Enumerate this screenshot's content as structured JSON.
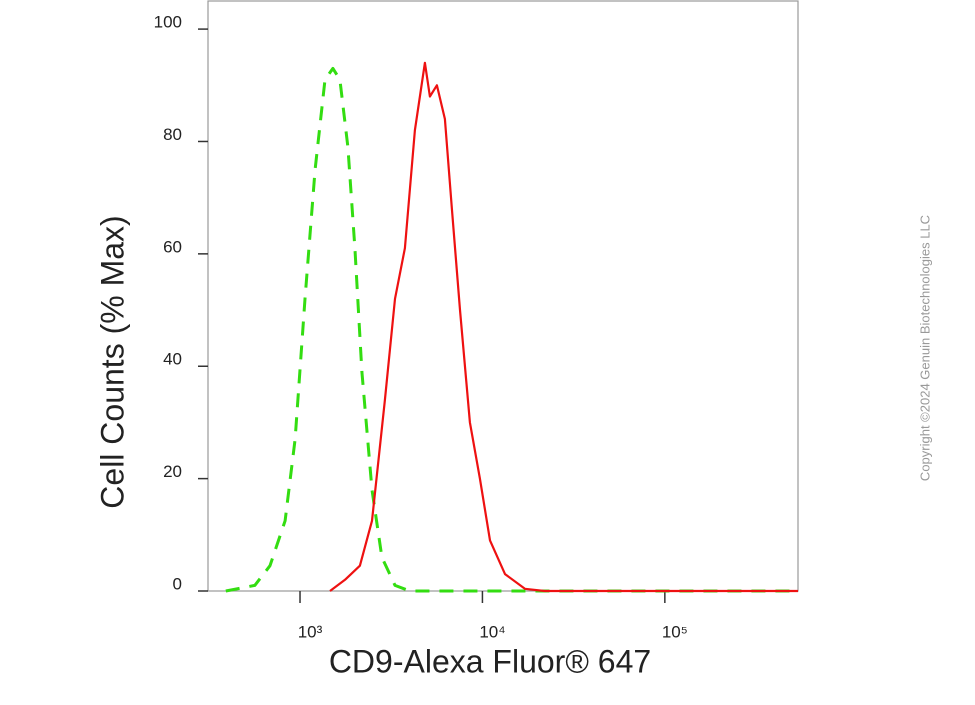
{
  "chart_data": {
    "type": "line",
    "title": null,
    "x_label": "CD9-Alexa Fluor® 647",
    "y_label": "Cell Counts (% Max)",
    "copyright": "Copyright ©2024 Genuin Biotechnologies LLC",
    "xscale": "log",
    "xlim": [
      313,
      537000
    ],
    "ylim": [
      0,
      105
    ],
    "xticks": [
      {
        "value": 1000,
        "label": "10³"
      },
      {
        "value": 10000,
        "label": "10⁴"
      },
      {
        "value": 100000,
        "label": "10⁵"
      }
    ],
    "yticks": [
      0,
      20,
      40,
      60,
      80,
      100
    ],
    "series": [
      {
        "color": "#33dd11",
        "dash": true,
        "x": [
          392,
          565,
          685,
          828,
          940,
          1065,
          1210,
          1370,
          1515,
          1655,
          1830,
          2000,
          2185,
          2480,
          2810,
          3315,
          4000,
          10000,
          100000,
          537000
        ],
        "values": [
          0,
          1,
          4.5,
          12.5,
          27,
          52,
          75,
          91,
          93,
          91,
          79,
          61,
          39,
          18,
          6,
          1,
          0,
          0,
          0,
          0
        ]
      },
      {
        "color": "#ee1111",
        "dash": false,
        "x": [
          1460,
          1765,
          2130,
          2480,
          2920,
          3315,
          3760,
          4265,
          4840,
          5150,
          5630,
          6230,
          6800,
          7530,
          8540,
          9690,
          11000,
          13300,
          17100,
          21900,
          100000,
          537000
        ],
        "values": [
          0,
          2,
          4.5,
          12.5,
          34,
          52,
          61,
          82,
          94,
          88,
          90,
          84,
          68,
          50,
          30,
          20,
          9,
          3,
          0.4,
          0,
          0,
          0
        ]
      }
    ]
  }
}
